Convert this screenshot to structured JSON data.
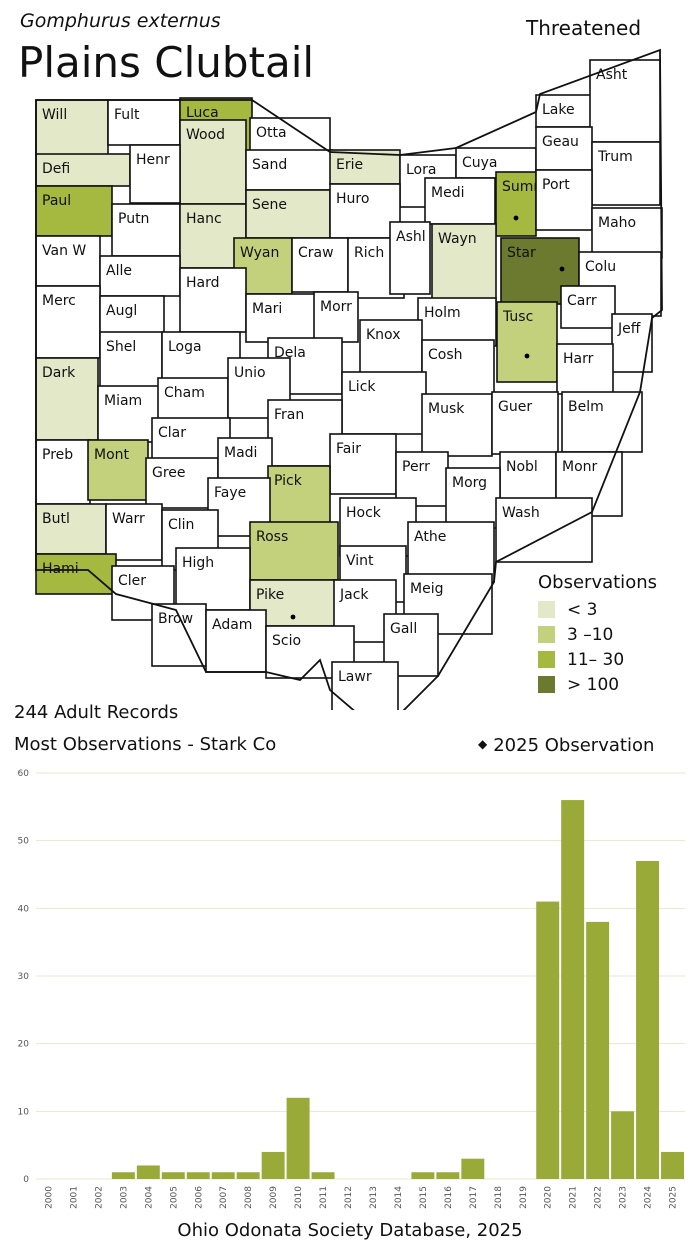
{
  "species": {
    "scientific_name": "Gomphurus externus",
    "common_name": "Plains Clubtail",
    "status": "Threatened"
  },
  "summary": {
    "records": "244 Adult Records",
    "most_observations": "Most Observations - Stark Co"
  },
  "legend": {
    "title": "Observations",
    "items": [
      {
        "label": "< 3",
        "color": "#e3e8c8"
      },
      {
        "label": "3 –10",
        "color": "#c4d17c"
      },
      {
        "label": "11– 30",
        "color": "#a5b83f"
      },
      {
        "label": "> 100",
        "color": "#6b7a2e"
      }
    ],
    "marker_label": "2025  Observation"
  },
  "map": {
    "counties": [
      {
        "name": "Will",
        "level": 1
      },
      {
        "name": "Fult",
        "level": 0
      },
      {
        "name": "Luca",
        "level": 3
      },
      {
        "name": "Otta",
        "level": 0
      },
      {
        "name": "Wood",
        "level": 1
      },
      {
        "name": "Defi",
        "level": 1
      },
      {
        "name": "Henr",
        "level": 0
      },
      {
        "name": "Sand",
        "level": 0
      },
      {
        "name": "Erie",
        "level": 1
      },
      {
        "name": "Lora",
        "level": 0
      },
      {
        "name": "Cuya",
        "level": 0
      },
      {
        "name": "Lake",
        "level": 0
      },
      {
        "name": "Asht",
        "level": 0
      },
      {
        "name": "Geau",
        "level": 0
      },
      {
        "name": "Trum",
        "level": 0
      },
      {
        "name": "Paul",
        "level": 3
      },
      {
        "name": "Putn",
        "level": 0
      },
      {
        "name": "Hanc",
        "level": 1
      },
      {
        "name": "Sene",
        "level": 1
      },
      {
        "name": "Huro",
        "level": 0
      },
      {
        "name": "Medi",
        "level": 0
      },
      {
        "name": "Summ",
        "level": 3,
        "obs2025": true
      },
      {
        "name": "Port",
        "level": 0
      },
      {
        "name": "Maho",
        "level": 0
      },
      {
        "name": "Van W",
        "level": 0
      },
      {
        "name": "Alle",
        "level": 0
      },
      {
        "name": "Wyan",
        "level": 2
      },
      {
        "name": "Craw",
        "level": 0
      },
      {
        "name": "Rich",
        "level": 0
      },
      {
        "name": "Ashl",
        "level": 0
      },
      {
        "name": "Wayn",
        "level": 1
      },
      {
        "name": "Star",
        "level": 4,
        "obs2025": true
      },
      {
        "name": "Colu",
        "level": 0
      },
      {
        "name": "Merc",
        "level": 0
      },
      {
        "name": "Augl",
        "level": 0
      },
      {
        "name": "Hard",
        "level": 0
      },
      {
        "name": "Mari",
        "level": 0
      },
      {
        "name": "Morr",
        "level": 0
      },
      {
        "name": "Holm",
        "level": 0
      },
      {
        "name": "Carr",
        "level": 0
      },
      {
        "name": "Tusc",
        "level": 2,
        "obs2025": true
      },
      {
        "name": "Jeff",
        "level": 0
      },
      {
        "name": "Shel",
        "level": 0
      },
      {
        "name": "Loga",
        "level": 0
      },
      {
        "name": "Knox",
        "level": 0
      },
      {
        "name": "Dela",
        "level": 0
      },
      {
        "name": "Cosh",
        "level": 0
      },
      {
        "name": "Harr",
        "level": 0
      },
      {
        "name": "Dark",
        "level": 1
      },
      {
        "name": "Miam",
        "level": 0
      },
      {
        "name": "Cham",
        "level": 0
      },
      {
        "name": "Unio",
        "level": 0
      },
      {
        "name": "Lick",
        "level": 0
      },
      {
        "name": "Musk",
        "level": 0
      },
      {
        "name": "Guer",
        "level": 0
      },
      {
        "name": "Belm",
        "level": 0
      },
      {
        "name": "Clar",
        "level": 0
      },
      {
        "name": "Fran",
        "level": 0
      },
      {
        "name": "Preb",
        "level": 0
      },
      {
        "name": "Mont",
        "level": 2
      },
      {
        "name": "Gree",
        "level": 0
      },
      {
        "name": "Madi",
        "level": 0
      },
      {
        "name": "Fair",
        "level": 0
      },
      {
        "name": "Perr",
        "level": 0
      },
      {
        "name": "Nobl",
        "level": 0
      },
      {
        "name": "Monr",
        "level": 0
      },
      {
        "name": "Morg",
        "level": 0
      },
      {
        "name": "Pick",
        "level": 2
      },
      {
        "name": "Faye",
        "level": 0
      },
      {
        "name": "Butl",
        "level": 1
      },
      {
        "name": "Warr",
        "level": 0
      },
      {
        "name": "Clin",
        "level": 0
      },
      {
        "name": "Hock",
        "level": 0
      },
      {
        "name": "Wash",
        "level": 0
      },
      {
        "name": "Ross",
        "level": 2
      },
      {
        "name": "Athe",
        "level": 0
      },
      {
        "name": "Hami",
        "level": 3
      },
      {
        "name": "Cler",
        "level": 0
      },
      {
        "name": "High",
        "level": 0
      },
      {
        "name": "Vint",
        "level": 0
      },
      {
        "name": "Pike",
        "level": 1,
        "obs2025": true
      },
      {
        "name": "Jack",
        "level": 0
      },
      {
        "name": "Meig",
        "level": 0
      },
      {
        "name": "Brow",
        "level": 0
      },
      {
        "name": "Adam",
        "level": 0
      },
      {
        "name": "Scio",
        "level": 0
      },
      {
        "name": "Gall",
        "level": 0
      },
      {
        "name": "Lawr",
        "level": 0
      }
    ]
  },
  "chart_data": {
    "type": "bar",
    "categories": [
      "2000",
      "2001",
      "2002",
      "2003",
      "2004",
      "2005",
      "2006",
      "2007",
      "2008",
      "2009",
      "2010",
      "2011",
      "2012",
      "2013",
      "2014",
      "2015",
      "2016",
      "2017",
      "2018",
      "2019",
      "2020",
      "2021",
      "2022",
      "2023",
      "2024",
      "2025"
    ],
    "values": [
      0,
      0,
      0,
      1,
      2,
      1,
      1,
      1,
      1,
      4,
      12,
      1,
      0,
      0,
      0,
      1,
      1,
      3,
      0,
      0,
      41,
      56,
      38,
      10,
      47,
      4
    ],
    "yticks": [
      "0",
      "10",
      "20",
      "30",
      "40",
      "50",
      "60"
    ],
    "ylim": [
      0,
      60
    ],
    "grid": true,
    "bar_color": "#9aaa38",
    "grid_color": "#e6e8cc"
  },
  "source": "Ohio Odonata Society Database, 2025"
}
